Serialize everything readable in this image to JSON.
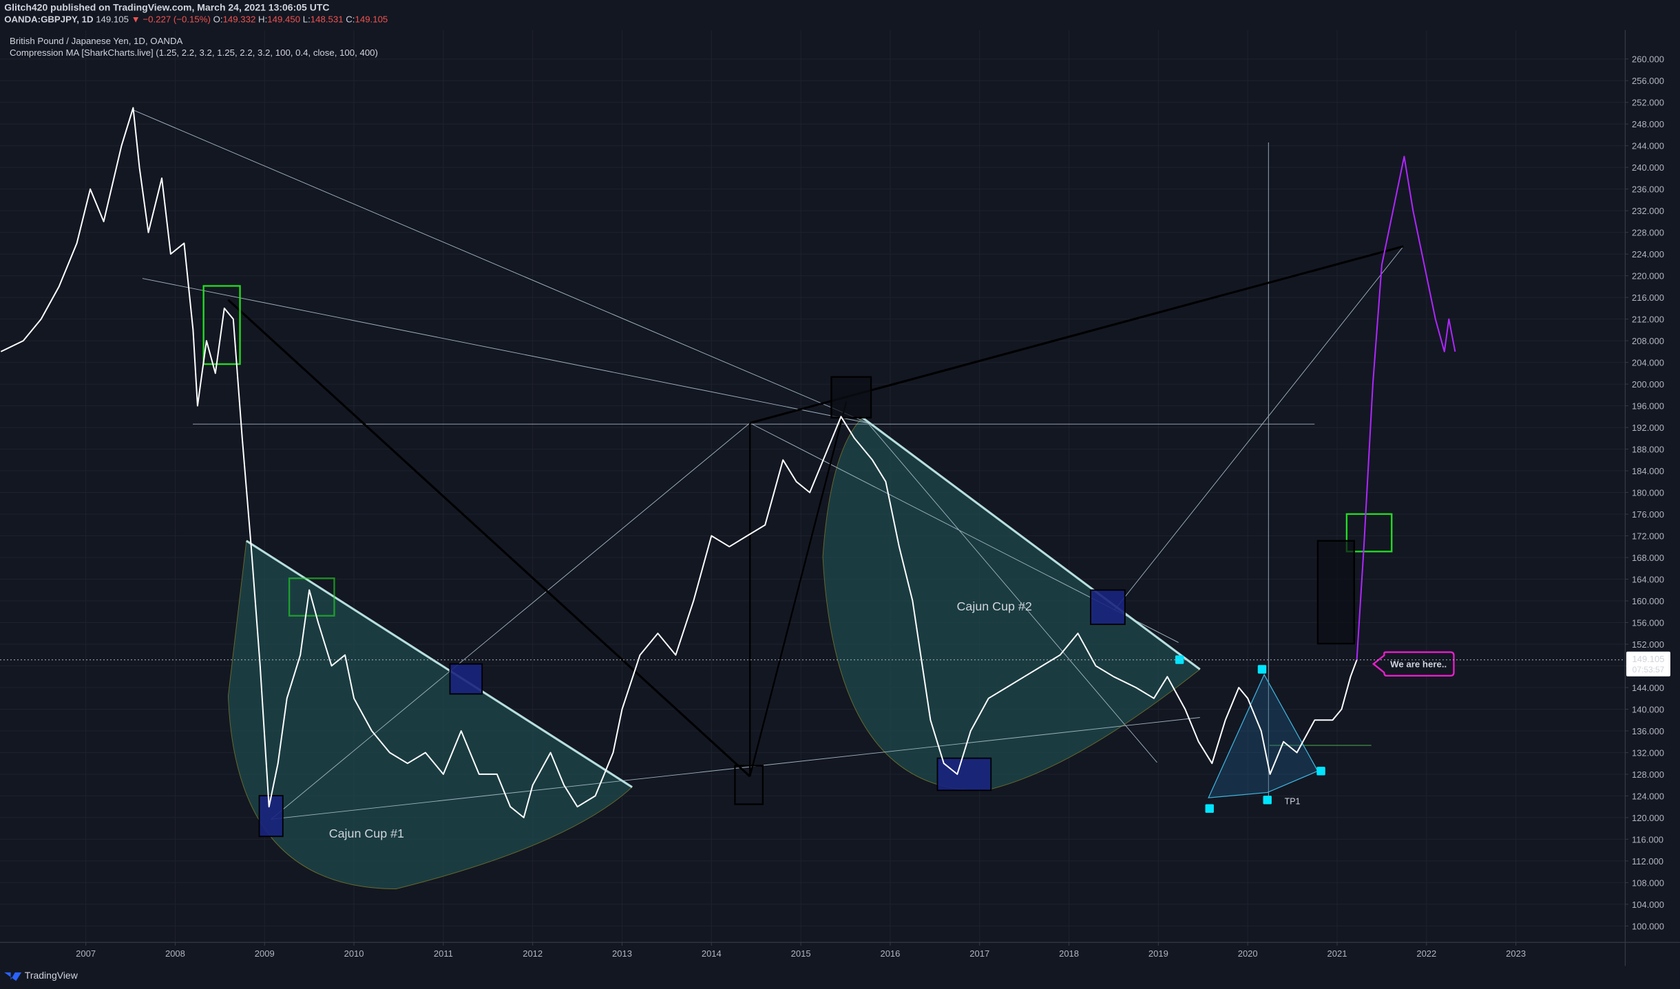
{
  "header": {
    "author": "Glitch420 published on TradingView.com, March 24, 2021 13:06:05 UTC",
    "symbol": "OANDA:GBPJPY, 1D",
    "price": "149.105",
    "change": "▼ −0.227 (−0.15%)",
    "open_label": "O:",
    "open": "149.332",
    "high_label": "H:",
    "high": "149.450",
    "low_label": "L:",
    "low": "148.531",
    "close_label": "C:",
    "close": "149.105"
  },
  "footer": "TradingView",
  "chart_data": {
    "type": "line",
    "title": "British Pound / Japanese Yen, 1D, OANDA",
    "subtitle": "Compression MA [SharkCharts.live] (1.25, 2.2, 3.2, 1.25, 2.2, 3.2, 100, 0.4, close, 100, 400)",
    "annotations": {
      "cup1": "Cajun Cup #1",
      "cup2": "Cajun Cup #2",
      "callout": "We are here..",
      "tp1": "TP1",
      "countdown": "07:53:57"
    },
    "x": [
      2006.05,
      2006.3,
      2006.5,
      2006.7,
      2006.9,
      2007.05,
      2007.2,
      2007.4,
      2007.53,
      2007.6,
      2007.7,
      2007.85,
      2007.95,
      2008.1,
      2008.2,
      2008.25,
      2008.35,
      2008.45,
      2008.55,
      2008.65,
      2008.75,
      2008.85,
      2008.95,
      2009.05,
      2009.15,
      2009.25,
      2009.4,
      2009.5,
      2009.6,
      2009.75,
      2009.9,
      2010.0,
      2010.2,
      2010.4,
      2010.6,
      2010.8,
      2011.0,
      2011.2,
      2011.4,
      2011.6,
      2011.75,
      2011.9,
      2012.0,
      2012.2,
      2012.35,
      2012.5,
      2012.7,
      2012.9,
      2013.0,
      2013.2,
      2013.4,
      2013.6,
      2013.8,
      2014.0,
      2014.2,
      2014.4,
      2014.6,
      2014.8,
      2014.95,
      2015.1,
      2015.3,
      2015.45,
      2015.6,
      2015.8,
      2015.95,
      2016.1,
      2016.25,
      2016.45,
      2016.6,
      2016.75,
      2016.9,
      2017.1,
      2017.3,
      2017.5,
      2017.7,
      2017.9,
      2018.1,
      2018.3,
      2018.5,
      2018.75,
      2018.95,
      2019.1,
      2019.3,
      2019.45,
      2019.6,
      2019.75,
      2019.9,
      2020.0,
      2020.15,
      2020.25,
      2020.4,
      2020.55,
      2020.75,
      2020.95,
      2021.05,
      2021.15,
      2021.22,
      2021.3,
      2021.4,
      2021.5,
      2021.6,
      2021.75,
      2021.85,
      2022.0,
      2022.1,
      2022.2,
      2022.25,
      2022.32
    ],
    "series": [
      {
        "color": "#ffffff",
        "values": [
          206,
          208,
          212,
          218,
          226,
          236,
          230,
          244,
          251,
          240,
          228,
          238,
          224,
          226,
          210,
          196,
          208,
          202,
          214,
          212,
          190,
          170,
          148,
          122,
          130,
          142,
          150,
          162,
          156,
          148,
          150,
          142,
          136,
          132,
          130,
          132,
          128,
          136,
          128,
          128,
          122,
          120,
          126,
          132,
          126,
          122,
          124,
          132,
          140,
          150,
          154,
          150,
          160,
          172,
          170,
          172,
          174,
          186,
          182,
          180,
          188,
          194,
          190,
          186,
          182,
          170,
          160,
          138,
          130,
          128,
          136,
          142,
          144,
          146,
          148,
          150,
          154,
          148,
          146,
          144,
          142,
          146,
          140,
          134,
          130,
          138,
          144,
          142,
          136,
          128,
          134,
          132,
          138,
          138,
          140,
          146,
          149.105,
          null,
          null,
          null,
          null,
          null,
          null,
          null,
          null,
          null,
          null,
          null
        ]
      },
      {
        "color": "#b026ff",
        "values": [
          null,
          null,
          null,
          null,
          null,
          null,
          null,
          null,
          null,
          null,
          null,
          null,
          null,
          null,
          null,
          null,
          null,
          null,
          null,
          null,
          null,
          null,
          null,
          null,
          null,
          null,
          null,
          null,
          null,
          null,
          null,
          null,
          null,
          null,
          null,
          null,
          null,
          null,
          null,
          null,
          null,
          null,
          null,
          null,
          null,
          null,
          null,
          null,
          null,
          null,
          null,
          null,
          null,
          null,
          null,
          null,
          null,
          null,
          null,
          null,
          null,
          null,
          null,
          null,
          null,
          null,
          null,
          null,
          null,
          null,
          null,
          null,
          null,
          null,
          null,
          null,
          null,
          null,
          null,
          null,
          null,
          null,
          null,
          null,
          null,
          null,
          null,
          null,
          null,
          null,
          null,
          null,
          null,
          null,
          null,
          null,
          149.105,
          170,
          200,
          222,
          230,
          242,
          232,
          220,
          212,
          206,
          212,
          206
        ]
      }
    ],
    "xlim": [
      2006.04,
      2024.22
    ],
    "xticks": [
      2007,
      2008,
      2009,
      2010,
      2011,
      2012,
      2013,
      2014,
      2015,
      2016,
      2017,
      2018,
      2019,
      2020,
      2021,
      2022,
      2023
    ],
    "ylim": [
      97,
      265.3
    ],
    "yticks": [
      {
        "value": 100,
        "label": "100.000"
      },
      {
        "value": 104,
        "label": "104.000"
      },
      {
        "value": 108,
        "label": "108.000"
      },
      {
        "value": 112,
        "label": "112.000"
      },
      {
        "value": 116,
        "label": "116.000"
      },
      {
        "value": 120,
        "label": "120.000"
      },
      {
        "value": 124,
        "label": "124.000"
      },
      {
        "value": 128,
        "label": "128.000"
      },
      {
        "value": 132,
        "label": "132.000"
      },
      {
        "value": 136,
        "label": "136.000"
      },
      {
        "value": 140,
        "label": "140.000"
      },
      {
        "value": 144,
        "label": "144.000"
      },
      {
        "value": 148,
        "label": "148.000"
      },
      {
        "value": 152,
        "label": "152.000"
      },
      {
        "value": 156,
        "label": "156.000"
      },
      {
        "value": 160,
        "label": "160.000"
      },
      {
        "value": 164,
        "label": "164.000"
      },
      {
        "value": 168,
        "label": "168.000"
      },
      {
        "value": 172,
        "label": "172.000"
      },
      {
        "value": 176,
        "label": "176.000"
      },
      {
        "value": 180,
        "label": "180.000"
      },
      {
        "value": 184,
        "label": "184.000"
      },
      {
        "value": 188,
        "label": "188.000"
      },
      {
        "value": 192,
        "label": "192.000"
      },
      {
        "value": 196,
        "label": "196.000"
      },
      {
        "value": 200,
        "label": "200.000"
      },
      {
        "value": 204,
        "label": "204.000"
      },
      {
        "value": 208,
        "label": "208.000"
      },
      {
        "value": 212,
        "label": "212.000"
      },
      {
        "value": 216,
        "label": "216.000"
      },
      {
        "value": 220,
        "label": "220.000"
      },
      {
        "value": 224,
        "label": "224.000"
      },
      {
        "value": 228,
        "label": "228.000"
      },
      {
        "value": 232,
        "label": "232.000"
      },
      {
        "value": 236,
        "label": "236.000"
      },
      {
        "value": 240,
        "label": "240.000"
      },
      {
        "value": 244,
        "label": "244.000"
      },
      {
        "value": 248,
        "label": "248.000"
      },
      {
        "value": 252,
        "label": "252.000"
      },
      {
        "value": 256,
        "label": "256.000"
      },
      {
        "value": 260,
        "label": "260.000"
      }
    ],
    "grid": true
  }
}
